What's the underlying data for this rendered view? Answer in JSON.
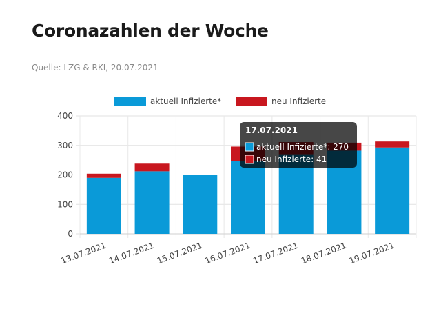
{
  "header": {
    "title": "Coronazahlen der Woche",
    "source": "Quelle: LZG & RKI, 20.07.2021"
  },
  "chart_data": {
    "type": "bar",
    "stacked": true,
    "categories": [
      "13.07.2021",
      "14.07.2021",
      "15.07.2021",
      "16.07.2021",
      "17.07.2021",
      "18.07.2021",
      "19.07.2021"
    ],
    "series": [
      {
        "name": "aktuell Infizierte*",
        "color": "#0a9ad8",
        "values": [
          190,
          212,
          200,
          246,
          270,
          282,
          293
        ]
      },
      {
        "name": "neu Infizierte",
        "color": "#c8171f",
        "values": [
          14,
          26,
          0,
          50,
          41,
          27,
          20
        ]
      }
    ],
    "ylim": [
      0,
      400
    ],
    "yticks": [
      0,
      100,
      200,
      300,
      400
    ],
    "grid": true,
    "legend": "top",
    "tooltip": {
      "title": "17.07.2021",
      "lines": [
        "aktuell Infizierte*: 270",
        "neu Infizierte: 41"
      ]
    }
  }
}
